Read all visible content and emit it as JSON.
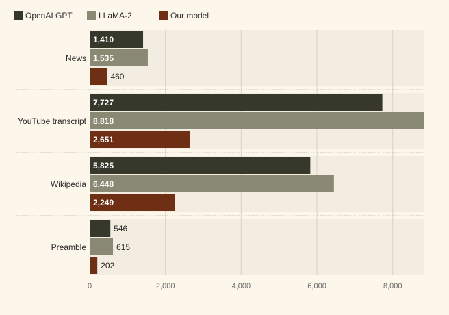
{
  "chart_data": {
    "type": "bar",
    "orientation": "horizontal",
    "title": "",
    "xlabel": "",
    "ylabel": "",
    "categories": [
      "News",
      "YouTube transcript",
      "Wikipedia",
      "Preamble"
    ],
    "series": [
      {
        "name": "OpenAI GPT",
        "color": "#37382c",
        "values": [
          1410,
          7727,
          5825,
          546
        ]
      },
      {
        "name": "LLaMA-2",
        "color": "#8a8a74",
        "values": [
          1535,
          8818,
          6448,
          615
        ]
      },
      {
        "name": "Our model",
        "color": "#6e2f14",
        "values": [
          460,
          2651,
          2249,
          202
        ]
      }
    ],
    "value_labels": [
      [
        "1,410",
        "7,727",
        "5,825",
        "546"
      ],
      [
        "1,535",
        "8,818",
        "6,448",
        "615"
      ],
      [
        "460",
        "2,651",
        "2,249",
        "202"
      ]
    ],
    "xlim": [
      0,
      8818
    ],
    "xticks": [
      0,
      2000,
      4000,
      6000,
      8000
    ],
    "xtick_labels": [
      "0",
      "2,000",
      "4,000",
      "6,000",
      "8,000"
    ],
    "grid": true,
    "legend_position": "top-left",
    "colors": {
      "background": "#fdf6ea",
      "panel": "#f3ece0",
      "grid": "#d8d1c4",
      "label_inside": "#ffffff",
      "label_outside": "#2b2b2b"
    }
  }
}
